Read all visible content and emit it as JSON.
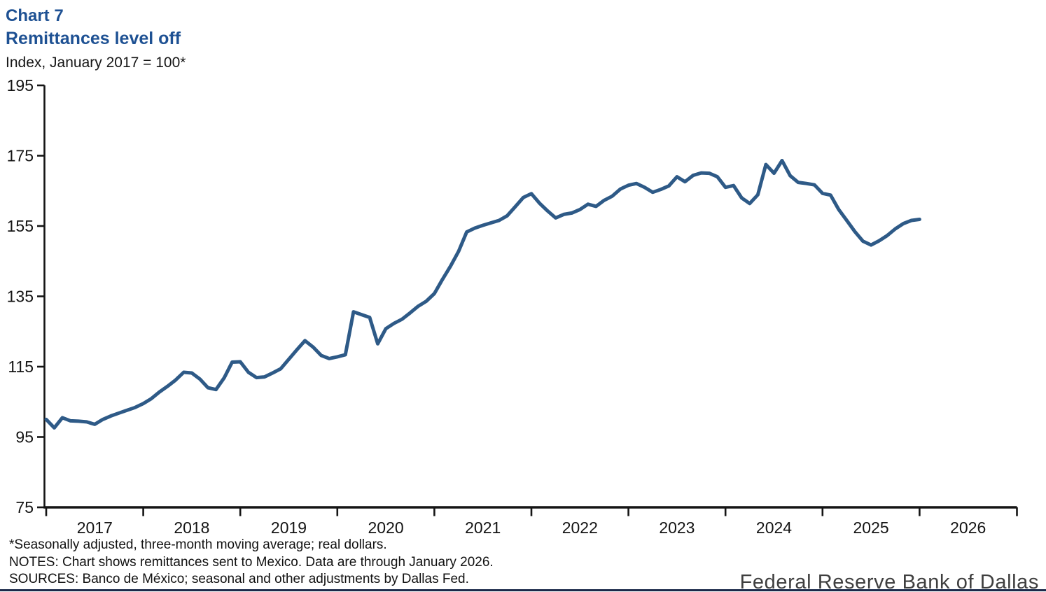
{
  "header": {
    "chart_label": "Chart 7",
    "title": "Remittances level off",
    "subtitle": "Index, January 2017 = 100*"
  },
  "footnotes": {
    "line1": "*Seasonally adjusted, three-month moving average; real dollars.",
    "line2": "NOTES: Chart shows remittances sent to Mexico. Data are through January 2026.",
    "line3": "SOURCES: Banco de México; seasonal and other adjustments by Dallas Fed."
  },
  "branding": {
    "text": "Federal Reserve Bank of Dallas"
  },
  "colors": {
    "title_blue": "#1e5193",
    "line_blue": "#2e5a87",
    "axis_black": "#141414",
    "footer_bar_navy": "#1b2a4a",
    "branding_gray": "#3f3f3f"
  },
  "chart_data": {
    "type": "line",
    "title": "Remittances level off",
    "subtitle": "Index, January 2017 = 100*",
    "xlabel": "",
    "ylabel": "Index, January 2017 = 100*",
    "ylim": [
      75,
      195
    ],
    "y_ticks": [
      195,
      175,
      155,
      135,
      115,
      95,
      75
    ],
    "x_tick_years": [
      "2017",
      "2018",
      "2019",
      "2020",
      "2021",
      "2022",
      "2023",
      "2024",
      "2025",
      "2026"
    ],
    "frequency": "monthly",
    "start_month": "2017-01",
    "end_month": "2026-01",
    "grid": false,
    "legend_position": "none",
    "series": [
      {
        "name": "Remittances sent to Mexico, index (Jan 2017 = 100)",
        "values": [
          100.0,
          97.6,
          100.5,
          99.6,
          99.5,
          99.3,
          98.6,
          100.0,
          101.0,
          101.8,
          102.6,
          103.4,
          104.5,
          105.9,
          107.8,
          109.4,
          111.2,
          113.4,
          113.2,
          111.5,
          109.0,
          108.5,
          111.8,
          116.3,
          116.4,
          113.4,
          111.9,
          112.1,
          113.2,
          114.4,
          117.1,
          119.8,
          122.4,
          120.6,
          118.2,
          117.3,
          117.8,
          118.4,
          130.6,
          129.8,
          129.0,
          121.5,
          125.8,
          127.3,
          128.5,
          130.3,
          132.2,
          133.6,
          135.8,
          139.8,
          143.6,
          147.8,
          153.3,
          154.4,
          155.2,
          155.9,
          156.6,
          157.9,
          160.5,
          163.1,
          164.2,
          161.5,
          159.3,
          157.3,
          158.3,
          158.7,
          159.7,
          161.2,
          160.6,
          162.3,
          163.5,
          165.5,
          166.6,
          167.1,
          166.0,
          164.6,
          165.4,
          166.4,
          169.0,
          167.6,
          169.4,
          170.1,
          170.0,
          169.0,
          166.0,
          166.5,
          163.0,
          161.4,
          163.9,
          172.5,
          170.0,
          173.6,
          169.3,
          167.4,
          167.1,
          166.7,
          164.3,
          163.8,
          159.7,
          156.6,
          153.4,
          150.7,
          149.6,
          150.8,
          152.3,
          154.2,
          155.7,
          156.6,
          156.9
        ]
      }
    ]
  }
}
